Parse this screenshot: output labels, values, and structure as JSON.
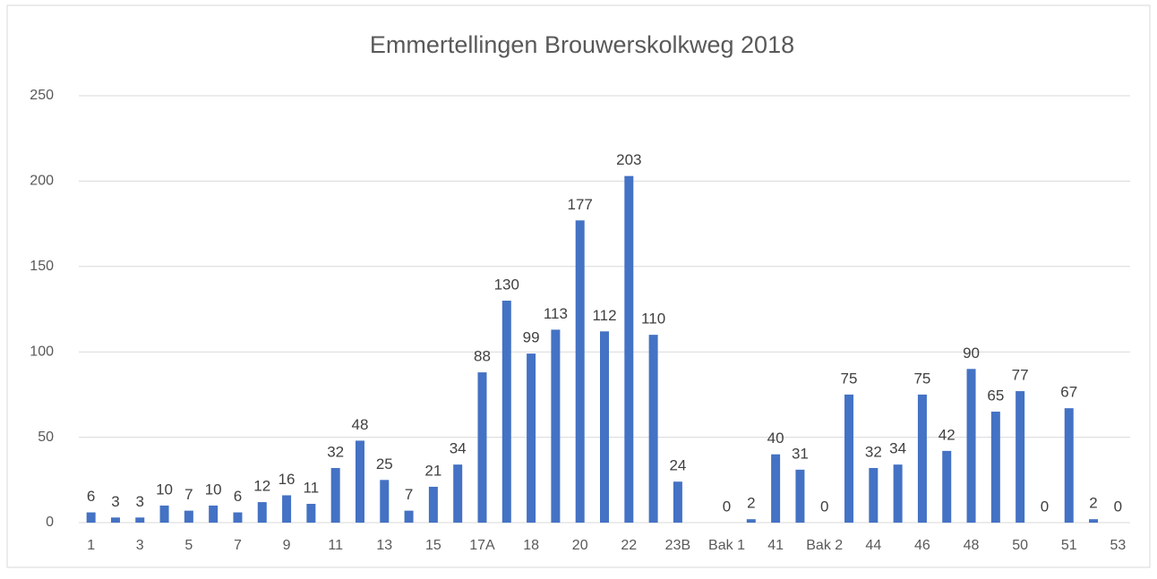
{
  "chart_data": {
    "type": "bar",
    "title": "Emmertellingen Brouwerskolkweg 2018",
    "categories": [
      "1",
      null,
      "3",
      null,
      "5",
      null,
      "7",
      null,
      "9",
      null,
      "11",
      null,
      "13",
      null,
      "15",
      null,
      "17A",
      null,
      "18",
      null,
      "20",
      null,
      "22",
      null,
      "23B",
      null,
      "Bak 1",
      null,
      "41",
      null,
      "Bak 2",
      null,
      "44",
      null,
      "46",
      null,
      "48",
      null,
      "50",
      null,
      "51",
      null,
      "53"
    ],
    "values": [
      6,
      3,
      3,
      10,
      7,
      10,
      6,
      12,
      16,
      11,
      32,
      48,
      25,
      7,
      21,
      34,
      88,
      130,
      99,
      113,
      177,
      112,
      203,
      110,
      24,
      null,
      0,
      2,
      40,
      31,
      0,
      75,
      32,
      34,
      75,
      42,
      90,
      65,
      77,
      0,
      67,
      2,
      0
    ],
    "color": "#4472c4",
    "ylim": [
      0,
      250
    ],
    "yticks": [
      0,
      50,
      100,
      150,
      200,
      250
    ],
    "grid": true
  }
}
